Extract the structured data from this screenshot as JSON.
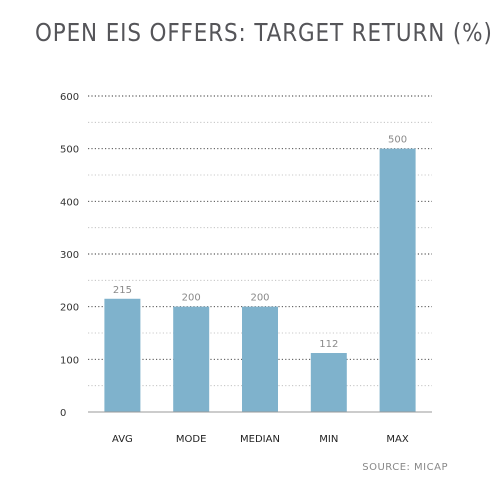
{
  "chart_data": {
    "type": "bar",
    "title": "OPEN EIS OFFERS: TARGET RETURN (%)",
    "categories": [
      "AVG",
      "MODE",
      "MEDIAN",
      "MIN",
      "MAX"
    ],
    "values": [
      215,
      200,
      200,
      112,
      500
    ],
    "data_labels": [
      "215",
      "200",
      "200",
      "112",
      "500"
    ],
    "ylim": [
      0,
      600
    ],
    "yticks": [
      0,
      100,
      200,
      300,
      400,
      500,
      600
    ],
    "minor_gridlines": [
      50,
      150,
      250,
      350,
      450,
      550
    ],
    "grid": true,
    "legend": "none",
    "source": "SOURCE: MICAP",
    "bar_color": "#7fb2cc"
  }
}
